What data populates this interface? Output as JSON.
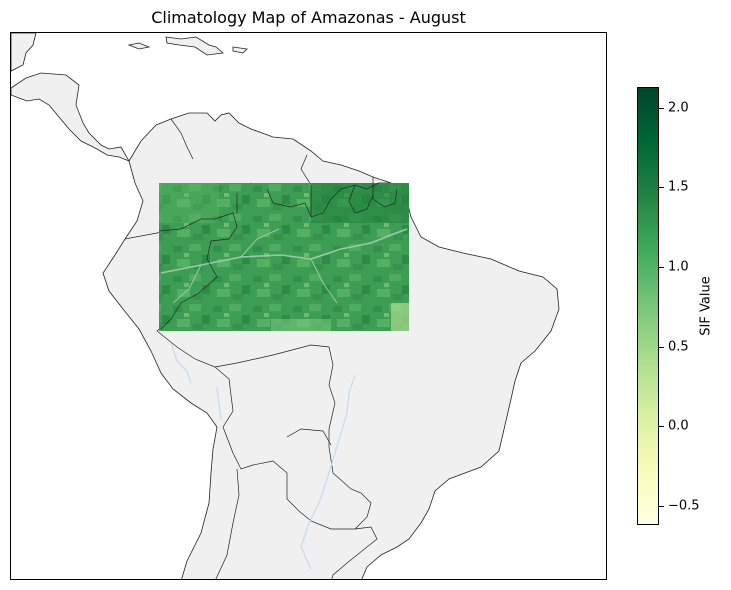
{
  "title": "Climatology Map of Amazonas - August",
  "colorbar": {
    "label": "SIF Value",
    "min": -0.62,
    "max": 2.13,
    "colormap": "Greens",
    "stops": [
      "#ffffe5",
      "#f7fcb9",
      "#d9f0a3",
      "#addd8e",
      "#78c679",
      "#41ab5d",
      "#238443",
      "#006837",
      "#004529"
    ],
    "ticks": [
      "−0.5",
      "0.0",
      "0.5",
      "1.0",
      "1.5",
      "2.0"
    ],
    "tick_values": [
      -0.5,
      0.0,
      0.5,
      1.0,
      1.5,
      2.0
    ]
  },
  "map": {
    "region": "Amazonas",
    "month": "August",
    "land_color": "#f0f0f0",
    "border_color": "#222222",
    "river_color": "#c6dbef",
    "data_colors": [
      "#2f9a4f",
      "#3ba55a",
      "#4caf5c",
      "#1f8a3e",
      "#6cbf6b",
      "#a9db8f"
    ]
  }
}
